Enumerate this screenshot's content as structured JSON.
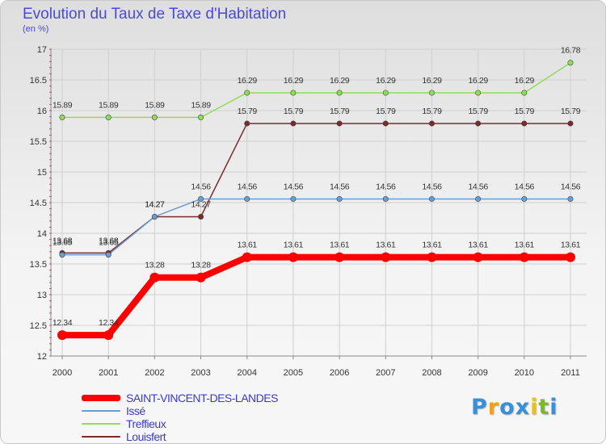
{
  "chart_data": {
    "type": "line",
    "title": "Evolution du Taux de Taxe d'Habitation",
    "subtitle": "(en %)",
    "xlabel": "",
    "ylabel": "",
    "categories": [
      "2000",
      "2001",
      "2002",
      "2003",
      "2004",
      "2005",
      "2006",
      "2007",
      "2008",
      "2009",
      "2010",
      "2011"
    ],
    "ylim": [
      12,
      17
    ],
    "yticks": [
      12,
      12.5,
      13,
      13.5,
      14,
      14.5,
      15,
      15.5,
      16,
      16.5,
      17
    ],
    "ytick_labels": [
      "12",
      "12.5",
      "13",
      "13.5",
      "14",
      "14.5",
      "15",
      "15.5",
      "16",
      "16.5",
      "17"
    ],
    "grid": true,
    "legend_position": "bottom-left",
    "series": [
      {
        "name": "SAINT-VINCENT-DES-LANDES",
        "color": "#ff0000",
        "values": [
          12.34,
          12.34,
          13.28,
          13.28,
          13.61,
          13.61,
          13.61,
          13.61,
          13.61,
          13.61,
          13.61,
          13.61
        ],
        "labels": [
          "12.34",
          "12.34",
          "13.28",
          "13.28",
          "13.61",
          "13.61",
          "13.61",
          "13.61",
          "13.61",
          "13.61",
          "13.61",
          "13.61"
        ]
      },
      {
        "name": "Issé",
        "color": "#6a9cd0",
        "values": [
          13.65,
          13.65,
          14.27,
          14.56,
          14.56,
          14.56,
          14.56,
          14.56,
          14.56,
          14.56,
          14.56,
          14.56
        ],
        "labels": [
          "13.65",
          "13.65",
          "14.27",
          "14.56",
          "14.56",
          "14.56",
          "14.56",
          "14.56",
          "14.56",
          "14.56",
          "14.56",
          "14.56"
        ]
      },
      {
        "name": "Treffieux",
        "color": "#8fdb5a",
        "values": [
          15.89,
          15.89,
          15.89,
          15.89,
          16.29,
          16.29,
          16.29,
          16.29,
          16.29,
          16.29,
          16.29,
          16.78
        ],
        "labels": [
          "15.89",
          "15.89",
          "15.89",
          "15.89",
          "16.29",
          "16.29",
          "16.29",
          "16.29",
          "16.29",
          "16.29",
          "16.29",
          "16.78"
        ]
      },
      {
        "name": "Louisfert",
        "color": "#7a2a2a",
        "values": [
          13.68,
          13.68,
          14.27,
          14.27,
          15.79,
          15.79,
          15.79,
          15.79,
          15.79,
          15.79,
          15.79,
          15.79
        ],
        "labels": [
          "13.68",
          "13.68",
          "14.27",
          "14.27",
          "15.79",
          "15.79",
          "15.79",
          "15.79",
          "15.79",
          "15.79",
          "15.79",
          "15.79"
        ]
      }
    ]
  },
  "logo": {
    "letters": [
      "P",
      "r",
      "o",
      "x",
      "i",
      "t",
      "i"
    ],
    "colors": [
      "#3a8fd8",
      "#f0a020",
      "#3a8fd8",
      "#3a8fd8",
      "#e8c020",
      "#7ab830",
      "#3a8fd8"
    ]
  }
}
